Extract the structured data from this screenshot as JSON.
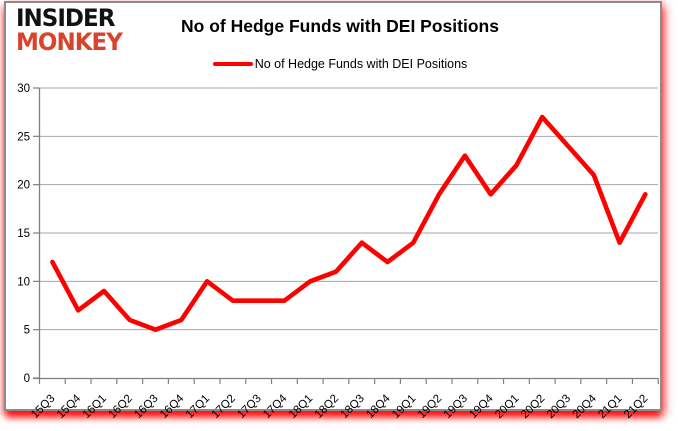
{
  "branding": {
    "logo_line1": "INSIDER",
    "logo_line2": "MONKEY",
    "logo_color_top": "#111111",
    "logo_color_bottom": "#d9432c"
  },
  "header": {
    "title": "No of Hedge Funds with DEI Positions"
  },
  "legend": {
    "label": "No of Hedge Funds with DEI Positions",
    "marker_color": "#ff0000"
  },
  "chart_data": {
    "type": "line",
    "title": "No of Hedge Funds with DEI Positions",
    "categories": [
      "15Q3",
      "15Q4",
      "16Q1",
      "16Q2",
      "16Q3",
      "16Q4",
      "17Q1",
      "17Q2",
      "17Q3",
      "17Q4",
      "18Q1",
      "18Q2",
      "18Q3",
      "18Q4",
      "19Q1",
      "19Q2",
      "19Q3",
      "19Q4",
      "20Q1",
      "20Q2",
      "20Q3",
      "20Q4",
      "21Q1",
      "21Q2"
    ],
    "series": [
      {
        "name": "No of Hedge Funds with DEI Positions",
        "color": "#ff0000",
        "values": [
          12,
          7,
          9,
          6,
          5,
          6,
          10,
          8,
          8,
          8,
          10,
          11,
          14,
          12,
          14,
          19,
          23,
          19,
          22,
          27,
          24,
          21,
          14,
          19
        ]
      }
    ],
    "xlabel": "",
    "ylabel": "",
    "ylim": [
      0,
      30
    ],
    "yticks": [
      0,
      5,
      10,
      15,
      20,
      25,
      30
    ],
    "grid": "horizontal",
    "legend_position": "top-center",
    "x_label_rotation_deg": -45
  },
  "colors": {
    "line": "#ff0000",
    "gridline": "#a6a6a6",
    "axis": "#808080",
    "tick_label": "#000000",
    "frame_border": "#8b8b8b",
    "frame_glow": "#ff0000",
    "background": "#ffffff"
  }
}
